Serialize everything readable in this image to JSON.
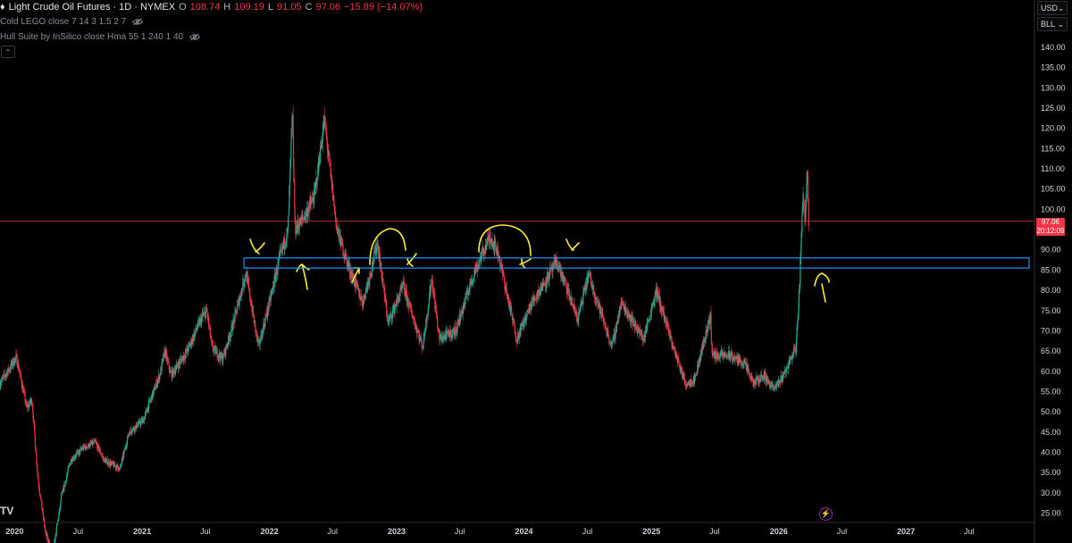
{
  "header": {
    "symbol": "Light Crude Oil Futures · 1D · NYMEX",
    "open_label": "O",
    "open": "108.74",
    "high_label": "H",
    "high": "109.19",
    "low_label": "L",
    "low": "91.05",
    "close_label": "C",
    "close": "97.06",
    "change": "−15.89 (−14.07%)"
  },
  "indicators": [
    {
      "label": "Cold LEGO close 7 14 3 1.5 2 7",
      "icon": "eye-off-icon"
    },
    {
      "label": "Hull Suite by InSilico close Hma 55 1 240 1 40",
      "icon": "eye-off-icon"
    }
  ],
  "currency_select": {
    "value": "USD"
  },
  "unit_select": {
    "value": "BLL"
  },
  "price_tag": {
    "price": "97.06",
    "countdown": "20:12:09"
  },
  "logo_text": "TV",
  "colors": {
    "up": "#22ab94",
    "down": "#f23645",
    "zone": "#2196f3",
    "annotation": "#ffeb3b",
    "price_line": "#f23645"
  },
  "chart_data": {
    "type": "candlestick",
    "title": "Light Crude Oil Futures · 1D · NYMEX",
    "ylim": [
      22,
      150
    ],
    "y_ticks": [
      25,
      30,
      35,
      40,
      45,
      50,
      55,
      60,
      65,
      70,
      75,
      80,
      85,
      90,
      95,
      100,
      105,
      110,
      115,
      120,
      125,
      130,
      135,
      140
    ],
    "x_range": [
      "2019-11-20",
      "2027-12-28"
    ],
    "x_ticks": [
      {
        "date": "2020-01-01",
        "label": "2020"
      },
      {
        "date": "2020-07-01",
        "label": "Jul"
      },
      {
        "date": "2021-01-01",
        "label": "2021"
      },
      {
        "date": "2021-07-01",
        "label": "Jul"
      },
      {
        "date": "2022-01-01",
        "label": "2022"
      },
      {
        "date": "2022-07-01",
        "label": "Jul"
      },
      {
        "date": "2023-01-01",
        "label": "2023"
      },
      {
        "date": "2023-07-01",
        "label": "Jul"
      },
      {
        "date": "2024-01-01",
        "label": "2024"
      },
      {
        "date": "2024-07-01",
        "label": "Jul"
      },
      {
        "date": "2025-01-01",
        "label": "2025"
      },
      {
        "date": "2025-07-01",
        "label": "Jul"
      },
      {
        "date": "2026-01-01",
        "label": "2026"
      },
      {
        "date": "2026-07-01",
        "label": "Jul"
      },
      {
        "date": "2027-01-01",
        "label": "2027"
      },
      {
        "date": "2027-07-01",
        "label": "Jul"
      }
    ],
    "series": [
      {
        "price_path": [
          [
            "2019-11-20",
            57
          ],
          [
            "2019-12-20",
            61
          ],
          [
            "2020-01-06",
            63.5
          ],
          [
            "2020-01-20",
            58
          ],
          [
            "2020-02-05",
            51
          ],
          [
            "2020-02-20",
            53
          ],
          [
            "2020-03-09",
            33
          ],
          [
            "2020-03-30",
            20
          ],
          [
            "2020-04-20",
            15
          ],
          [
            "2020-05-15",
            29
          ],
          [
            "2020-06-10",
            38
          ],
          [
            "2020-07-15",
            41
          ],
          [
            "2020-08-20",
            42.5
          ],
          [
            "2020-09-15",
            38
          ],
          [
            "2020-10-30",
            36
          ],
          [
            "2020-11-25",
            45
          ],
          [
            "2021-01-05",
            48
          ],
          [
            "2021-02-20",
            59
          ],
          [
            "2021-03-08",
            65
          ],
          [
            "2021-03-25",
            59
          ],
          [
            "2021-05-10",
            65
          ],
          [
            "2021-06-20",
            73
          ],
          [
            "2021-07-06",
            75
          ],
          [
            "2021-07-20",
            66
          ],
          [
            "2021-08-20",
            63
          ],
          [
            "2021-09-20",
            72
          ],
          [
            "2021-10-26",
            84.5
          ],
          [
            "2021-12-01",
            66
          ],
          [
            "2021-12-30",
            76
          ],
          [
            "2022-01-28",
            87
          ],
          [
            "2022-02-24",
            95
          ],
          [
            "2022-03-08",
            124
          ],
          [
            "2022-03-16",
            95
          ],
          [
            "2022-04-10",
            98
          ],
          [
            "2022-05-10",
            103
          ],
          [
            "2022-06-08",
            122
          ],
          [
            "2022-07-14",
            95
          ],
          [
            "2022-08-16",
            86
          ],
          [
            "2022-09-26",
            77
          ],
          [
            "2022-10-20",
            85
          ],
          [
            "2022-11-07",
            92
          ],
          [
            "2022-12-08",
            72
          ],
          [
            "2023-01-20",
            81
          ],
          [
            "2023-03-17",
            66
          ],
          [
            "2023-04-12",
            83
          ],
          [
            "2023-05-04",
            68
          ],
          [
            "2023-06-20",
            70
          ],
          [
            "2023-08-10",
            84
          ],
          [
            "2023-09-27",
            93.5
          ],
          [
            "2023-10-20",
            89
          ],
          [
            "2023-12-12",
            68
          ],
          [
            "2024-01-25",
            77
          ],
          [
            "2024-04-05",
            87
          ],
          [
            "2024-06-04",
            73
          ],
          [
            "2024-07-05",
            84
          ],
          [
            "2024-09-10",
            66
          ],
          [
            "2024-10-07",
            77
          ],
          [
            "2024-12-10",
            68
          ],
          [
            "2025-01-15",
            80
          ],
          [
            "2025-03-05",
            66
          ],
          [
            "2025-04-09",
            57
          ],
          [
            "2025-05-05",
            58
          ],
          [
            "2025-06-20",
            74
          ],
          [
            "2025-06-24",
            64
          ],
          [
            "2025-08-10",
            64
          ],
          [
            "2025-09-25",
            62
          ],
          [
            "2025-10-20",
            57
          ],
          [
            "2025-11-20",
            59
          ],
          [
            "2025-12-20",
            55.5
          ],
          [
            "2026-01-20",
            60
          ],
          [
            "2026-02-20",
            66
          ],
          [
            "2026-03-03",
            82
          ],
          [
            "2026-03-12",
            105
          ],
          [
            "2026-03-18",
            97
          ],
          [
            "2026-03-24",
            112
          ],
          [
            "2026-03-28",
            97.06
          ]
        ]
      }
    ],
    "last_price": 97.06,
    "support_zone": {
      "from": "2021-10-20",
      "to": "2027-12-28",
      "low": 85.5,
      "high": 88
    }
  }
}
